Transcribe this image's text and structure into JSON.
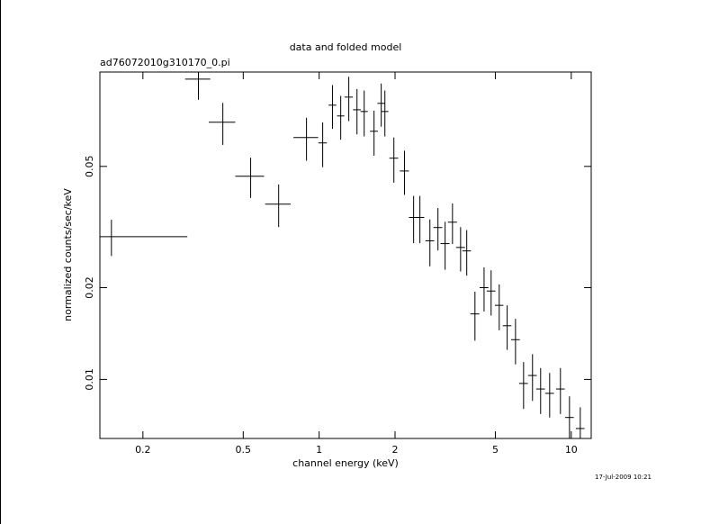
{
  "chart_data": {
    "type": "errorbar",
    "title": "data and folded model",
    "subtitle": "ad76072010g310170_0.pi",
    "x_label": "channel energy (keV)",
    "y_label": "normalized counts/sec/keV",
    "timestamp": "17-Jul-2009 10:21",
    "log_x": true,
    "log_y": true,
    "xlim": [
      0.135,
      12
    ],
    "ylim": [
      0.0064,
      0.102
    ],
    "xticks": [
      0.2,
      0.5,
      1,
      2,
      5,
      10
    ],
    "yticks": [
      0.01,
      0.02,
      0.05
    ],
    "series": [
      {
        "color": "#000000",
        "x": [
          0.15,
          0.332,
          0.415,
          0.535,
          0.691,
          0.891,
          1.033,
          1.13,
          1.218,
          1.311,
          1.413,
          1.509,
          1.651,
          1.763,
          1.823,
          1.979,
          2.18,
          2.37,
          2.51,
          2.75,
          2.96,
          3.16,
          3.38,
          3.64,
          3.85,
          4.15,
          4.51,
          4.81,
          5.18,
          5.57,
          6.01,
          6.47,
          7.02,
          7.56,
          8.21,
          9.06,
          9.84,
          10.86
        ],
        "xerr": [
          0.15,
          0.038,
          0.05,
          0.07,
          0.08,
          0.1,
          0.04,
          0.04,
          0.04,
          0.05,
          0.05,
          0.05,
          0.06,
          0.06,
          0.06,
          0.08,
          0.09,
          0.1,
          0.1,
          0.11,
          0.12,
          0.13,
          0.14,
          0.15,
          0.15,
          0.17,
          0.18,
          0.19,
          0.2,
          0.22,
          0.24,
          0.26,
          0.28,
          0.3,
          0.33,
          0.36,
          0.39,
          0.43
        ],
        "values": [
          0.0294,
          0.0967,
          0.0698,
          0.0464,
          0.0376,
          0.0622,
          0.0597,
          0.0794,
          0.0732,
          0.0844,
          0.0767,
          0.0757,
          0.0652,
          0.0805,
          0.0757,
          0.0532,
          0.0483,
          0.034,
          0.034,
          0.0285,
          0.0315,
          0.0279,
          0.0328,
          0.0271,
          0.0264,
          0.0164,
          0.02,
          0.0195,
          0.0175,
          0.015,
          0.0135,
          0.0097,
          0.0103,
          0.0093,
          0.009,
          0.0093,
          0.0075,
          0.0069
        ],
        "yerr": [
          0.004,
          0.014,
          0.011,
          0.007,
          0.006,
          0.01,
          0.01,
          0.013,
          0.012,
          0.014,
          0.013,
          0.013,
          0.011,
          0.013,
          0.013,
          0.009,
          0.008,
          0.006,
          0.006,
          0.005,
          0.005,
          0.005,
          0.005,
          0.0045,
          0.0045,
          0.003,
          0.0033,
          0.0033,
          0.003,
          0.0025,
          0.0023,
          0.0017,
          0.0018,
          0.0016,
          0.0015,
          0.0016,
          0.0013,
          0.0012
        ]
      }
    ]
  }
}
